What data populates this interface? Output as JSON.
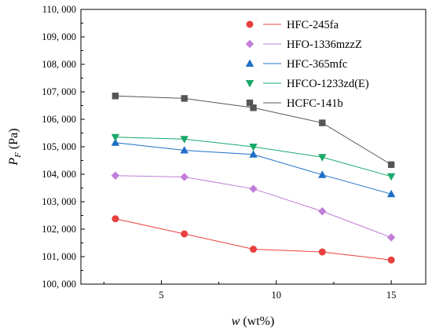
{
  "chart_data": {
    "type": "line",
    "xlabel": {
      "var": "w",
      "unit": " (wt%)"
    },
    "ylabel": {
      "var": "P",
      "sub": "F",
      "unit": " (Pa)"
    },
    "xlim": [
      1.5,
      16.5
    ],
    "ylim": [
      100000,
      110000
    ],
    "x_ticks": [
      5,
      10,
      15
    ],
    "y_ticks": [
      100000,
      101000,
      102000,
      103000,
      104000,
      105000,
      106000,
      107000,
      108000,
      109000,
      110000
    ],
    "y_tick_labels": [
      "100, 000",
      "101, 000",
      "102, 000",
      "103, 000",
      "104, 000",
      "105, 000",
      "106, 000",
      "107, 000",
      "108, 000",
      "109, 000",
      "110, 000"
    ],
    "x": [
      3,
      6,
      9,
      12,
      15
    ],
    "legend_position": "top-right",
    "series": [
      {
        "name": "HFC-245fa",
        "color": "#e8403f",
        "marker": "circle",
        "values": [
          102380,
          101830,
          101270,
          101170,
          100880
        ]
      },
      {
        "name": "HFO-1336mzzZ",
        "color": "#c27ed8",
        "marker": "diamond",
        "values": [
          103950,
          103900,
          103470,
          102650,
          101700
        ]
      },
      {
        "name": "HFC-365mfc",
        "color": "#1f6fc8",
        "marker": "triangle-up",
        "values": [
          105150,
          104870,
          104720,
          103980,
          103280
        ]
      },
      {
        "name": "HFCO-1233zd(E)",
        "color": "#1aa86a",
        "marker": "triangle-down",
        "values": [
          105350,
          105280,
          105000,
          104620,
          103920
        ]
      },
      {
        "name": "HCFC-141b",
        "color": "#555555",
        "marker": "square",
        "values": [
          106850,
          106760,
          106420,
          105870,
          104350
        ]
      }
    ]
  }
}
